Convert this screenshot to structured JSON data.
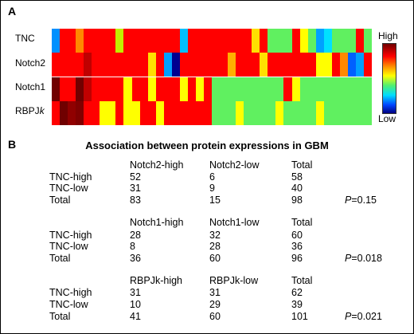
{
  "panel_a": {
    "label": "A",
    "rows": [
      "TNC",
      "Notch2",
      "Notch1",
      "RBPJk"
    ],
    "colorbar": {
      "high": "High",
      "low": "Low"
    },
    "heatmap": [
      [
        "#0090ff",
        "#ff0000",
        "#ff0000",
        "#ff8800",
        "#ff0000",
        "#ff0000",
        "#ff0000",
        "#ff0000",
        "#c0f000",
        "#ff0000",
        "#ff0000",
        "#ff0000",
        "#ff0000",
        "#ff0000",
        "#ff0000",
        "#ff0000",
        "#00c0ff",
        "#ff0000",
        "#ff0000",
        "#ff0000",
        "#ff0000",
        "#ff0000",
        "#ff0000",
        "#ff0000",
        "#ff0000",
        "#ffe000",
        "#ff0000",
        "#60f060",
        "#60f060",
        "#60f060",
        "#ff0000",
        "#ffff00",
        "#60f060",
        "#00a0ff",
        "#00e0ff",
        "#60f060",
        "#60f060",
        "#60f060",
        "#ff0000",
        "#60f060"
      ],
      [
        "#ff0000",
        "#ff0000",
        "#ff0000",
        "#ff0000",
        "#c00000",
        "#ff0000",
        "#ff0000",
        "#ff0000",
        "#ff0000",
        "#ff0000",
        "#ff0000",
        "#ff0000",
        "#ffe000",
        "#ff0000",
        "#00a0ff",
        "#000090",
        "#ff0000",
        "#ff0000",
        "#ff0000",
        "#ff0000",
        "#ff0000",
        "#ff0000",
        "#ffb000",
        "#ff0000",
        "#ff0000",
        "#ff0000",
        "#ffe000",
        "#ff0000",
        "#ff0000",
        "#ff0000",
        "#ff0000",
        "#ff0000",
        "#ff0000",
        "#ffff00",
        "#ffff00",
        "#ff0000",
        "#ff8800",
        "#0060ff",
        "#00a0ff",
        "#ff0000"
      ],
      [
        "#700000",
        "#ff0000",
        "#ff0000",
        "#700000",
        "#c00000",
        "#ff0000",
        "#ff0000",
        "#ff0000",
        "#ff0000",
        "#ffff00",
        "#ff0000",
        "#ff0000",
        "#ffff00",
        "#ff0000",
        "#ff0000",
        "#ff0000",
        "#ffff00",
        "#ff0000",
        "#ffff00",
        "#ff0000",
        "#60f060",
        "#60f060",
        "#60f060",
        "#60f060",
        "#60f060",
        "#60f060",
        "#60f060",
        "#60f060",
        "#60f060",
        "#ff0000",
        "#ffff00",
        "#60f060",
        "#60f060",
        "#60f060",
        "#60f060",
        "#60f060",
        "#60f060",
        "#60f060",
        "#60f060",
        "#60f060"
      ],
      [
        "#ff0000",
        "#700000",
        "#900000",
        "#800000",
        "#ff0000",
        "#ff0000",
        "#ffff00",
        "#ffff00",
        "#ff0000",
        "#ffff00",
        "#ffff00",
        "#ff0000",
        "#ff0000",
        "#ffff00",
        "#ff0000",
        "#ff0000",
        "#ff0000",
        "#ff0000",
        "#ff0000",
        "#ff0000",
        "#60f060",
        "#60f060",
        "#60f060",
        "#ffff00",
        "#60f060",
        "#60f060",
        "#60f060",
        "#60f060",
        "#ffff00",
        "#60f060",
        "#60f060",
        "#60f060",
        "#60f060",
        "#ffff00",
        "#60f060",
        "#60f060",
        "#60f060",
        "#60f060",
        "#60f060",
        "#60f060"
      ]
    ]
  },
  "panel_b": {
    "label": "B",
    "title": "Association between protein expressions in GBM",
    "tables": [
      {
        "headers": [
          "Notch2-high",
          "Notch2-low",
          "Total"
        ],
        "rows": [
          {
            "label": "TNC-high",
            "values": [
              "52",
              "6",
              "58"
            ]
          },
          {
            "label": "TNC-low",
            "values": [
              "31",
              "9",
              "40"
            ]
          },
          {
            "label": "Total",
            "values": [
              "83",
              "15",
              "98"
            ]
          }
        ],
        "p_symbol": "P",
        "p_value": "=0.15"
      },
      {
        "headers": [
          "Notch1-high",
          "Notch1-low",
          "Total"
        ],
        "rows": [
          {
            "label": "TNC-high",
            "values": [
              "28",
              "32",
              "60"
            ]
          },
          {
            "label": "TNC-low",
            "values": [
              "8",
              "28",
              "36"
            ]
          },
          {
            "label": "Total",
            "values": [
              "36",
              "60",
              "96"
            ]
          }
        ],
        "p_symbol": "P",
        "p_value": "=0.018"
      },
      {
        "headers": [
          "RBPJk-high",
          "RBPJk-low",
          "Total"
        ],
        "rows": [
          {
            "label": "TNC-high",
            "values": [
              "31",
              "31",
              "62"
            ]
          },
          {
            "label": "TNC-low",
            "values": [
              "10",
              "29",
              "39"
            ]
          },
          {
            "label": "Total",
            "values": [
              "41",
              "60",
              "101"
            ]
          }
        ],
        "p_symbol": "P",
        "p_value": "=0.021"
      }
    ]
  }
}
